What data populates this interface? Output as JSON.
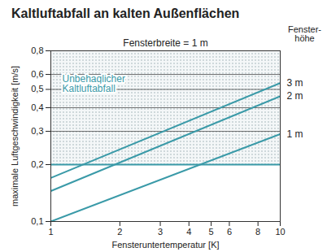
{
  "chart_data": {
    "type": "line",
    "title": "Kaltluftabfall an kalten Außenflächen",
    "subtitle": "Fensterbreite = 1 m",
    "legend_title": "Fenster-\nhöhe",
    "x_label": "Fensteruntertemperatur [K]",
    "y_label": "maximale Luftgeschwindigkeit [m/s]",
    "log": true,
    "grid": true,
    "xlim": [
      1,
      10
    ],
    "xticks": [
      1,
      2,
      3,
      4,
      5,
      6,
      8,
      10
    ],
    "ylim": [
      0.1,
      0.8
    ],
    "yticks": [
      {
        "value": 0.1,
        "label": "0,1"
      },
      {
        "value": 0.2,
        "label": "0,2"
      },
      {
        "value": 0.3,
        "label": "0,3"
      },
      {
        "value": 0.4,
        "label": "0,4"
      },
      {
        "value": 0.5,
        "label": "0,5"
      },
      {
        "value": 0.6,
        "label": "0,6"
      },
      {
        "value": 0.8,
        "label": "0,8"
      }
    ],
    "threshold": {
      "value": 0.2,
      "label": "Unbehaglicher\nKaltluftabfall",
      "color": "#3a9aa8"
    },
    "x": [
      1,
      10
    ],
    "series": [
      {
        "name": "3 m",
        "color": "#3a9aa8",
        "values": [
          0.17,
          0.54
        ]
      },
      {
        "name": "2 m",
        "color": "#3a9aa8",
        "values": [
          0.145,
          0.46
        ]
      },
      {
        "name": "1 m",
        "color": "#3a9aa8",
        "values": [
          0.1,
          0.29
        ]
      }
    ]
  }
}
